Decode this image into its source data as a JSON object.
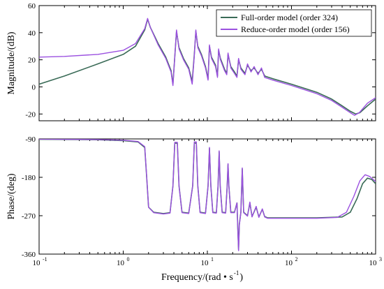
{
  "chart_data": [
    {
      "type": "line",
      "panel": "magnitude",
      "xscale": "log",
      "xlim": [
        0.1,
        1000
      ],
      "ylim": [
        -25,
        60
      ],
      "ylabel": "Magnitude/(dB)",
      "xlabel": "",
      "yticks": [
        "60",
        "40",
        "20",
        "0",
        "-20"
      ],
      "ytick_values": [
        60,
        40,
        20,
        0,
        -20
      ],
      "xtick_values": [
        0.1,
        1,
        10,
        100,
        1000
      ],
      "legend_position": "top-right",
      "grid": false,
      "series": [
        {
          "name": "Full-order model (order 324)",
          "color": "#3a6b57",
          "points": [
            [
              0.1,
              2
            ],
            [
              0.2,
              8
            ],
            [
              0.5,
              17
            ],
            [
              1.0,
              24
            ],
            [
              1.4,
              30
            ],
            [
              1.8,
              42
            ],
            [
              1.95,
              50
            ],
            [
              2.1,
              44
            ],
            [
              2.6,
              32
            ],
            [
              3.2,
              22
            ],
            [
              3.7,
              12
            ],
            [
              3.9,
              2
            ],
            [
              4.1,
              22
            ],
            [
              4.3,
              41
            ],
            [
              4.6,
              29
            ],
            [
              5.2,
              21
            ],
            [
              6.0,
              14
            ],
            [
              6.6,
              4
            ],
            [
              7.0,
              24
            ],
            [
              7.3,
              41
            ],
            [
              7.7,
              30
            ],
            [
              8.5,
              24
            ],
            [
              9.5,
              15
            ],
            [
              10.2,
              6
            ],
            [
              10.6,
              30
            ],
            [
              11.2,
              22
            ],
            [
              12.5,
              16
            ],
            [
              13.2,
              8
            ],
            [
              13.6,
              27
            ],
            [
              14.3,
              21
            ],
            [
              16.0,
              13
            ],
            [
              17.0,
              10
            ],
            [
              17.6,
              24
            ],
            [
              19.0,
              15
            ],
            [
              21.0,
              11
            ],
            [
              22.5,
              8
            ],
            [
              23.5,
              20
            ],
            [
              25.0,
              14
            ],
            [
              28.0,
              10
            ],
            [
              30.0,
              16
            ],
            [
              33.0,
              12
            ],
            [
              36.0,
              14
            ],
            [
              40.0,
              10
            ],
            [
              44.0,
              13
            ],
            [
              48.0,
              8
            ],
            [
              60.0,
              6
            ],
            [
              100.0,
              2
            ],
            [
              200.0,
              -4
            ],
            [
              300.0,
              -9
            ],
            [
              400.0,
              -14
            ],
            [
              500.0,
              -18
            ],
            [
              580.0,
              -20
            ],
            [
              650.0,
              -19
            ],
            [
              800.0,
              -14
            ],
            [
              1000.0,
              -9
            ]
          ]
        },
        {
          "name": "Reduce-order model (order 156)",
          "color": "#9b51e0",
          "points": [
            [
              0.1,
              22
            ],
            [
              0.2,
              22.5
            ],
            [
              0.5,
              24
            ],
            [
              1.0,
              27
            ],
            [
              1.4,
              32
            ],
            [
              1.8,
              43
            ],
            [
              1.95,
              50.5
            ],
            [
              2.1,
              44
            ],
            [
              2.6,
              31
            ],
            [
              3.2,
              21
            ],
            [
              3.7,
              11
            ],
            [
              3.9,
              1
            ],
            [
              4.1,
              22
            ],
            [
              4.3,
              42
            ],
            [
              4.6,
              28
            ],
            [
              5.2,
              20
            ],
            [
              6.0,
              13
            ],
            [
              6.6,
              2
            ],
            [
              7.0,
              23
            ],
            [
              7.3,
              42
            ],
            [
              7.7,
              29
            ],
            [
              8.5,
              23
            ],
            [
              9.5,
              14
            ],
            [
              10.2,
              5
            ],
            [
              10.6,
              31
            ],
            [
              11.2,
              21
            ],
            [
              12.5,
              15
            ],
            [
              13.2,
              7
            ],
            [
              13.6,
              28
            ],
            [
              14.3,
              20
            ],
            [
              16.0,
              12
            ],
            [
              17.0,
              9
            ],
            [
              17.6,
              25
            ],
            [
              19.0,
              14
            ],
            [
              21.0,
              10
            ],
            [
              22.5,
              7
            ],
            [
              23.5,
              21
            ],
            [
              25.0,
              13
            ],
            [
              28.0,
              9
            ],
            [
              30.0,
              17
            ],
            [
              33.0,
              11
            ],
            [
              36.0,
              15
            ],
            [
              40.0,
              9
            ],
            [
              44.0,
              14
            ],
            [
              48.0,
              7
            ],
            [
              60.0,
              5
            ],
            [
              100.0,
              1
            ],
            [
              200.0,
              -5
            ],
            [
              300.0,
              -10
            ],
            [
              400.0,
              -15
            ],
            [
              500.0,
              -19
            ],
            [
              560.0,
              -21
            ],
            [
              640.0,
              -19
            ],
            [
              800.0,
              -12
            ],
            [
              1000.0,
              -8
            ]
          ]
        }
      ]
    },
    {
      "type": "line",
      "panel": "phase",
      "xscale": "log",
      "xlim": [
        0.1,
        1000
      ],
      "ylim": [
        -360,
        -90
      ],
      "ylabel": "Phase/(deg)",
      "xlabel": "Frequency/(rad • s",
      "xlabel_superscript": "-1",
      "xlabel_close": ")",
      "yticks": [
        "-90",
        "-180",
        "-270",
        "-360"
      ],
      "ytick_values": [
        -90,
        -180,
        -270,
        -360
      ],
      "xtick_base": "10",
      "xtick_exponents": [
        "-1",
        "0",
        "1",
        "2",
        "3"
      ],
      "xtick_values": [
        0.1,
        1,
        10,
        100,
        1000
      ],
      "grid": false,
      "series": [
        {
          "name": "Full-order model (order 324)",
          "color": "#3a6b57",
          "points": [
            [
              0.1,
              -91
            ],
            [
              0.5,
              -92
            ],
            [
              1.0,
              -94
            ],
            [
              1.5,
              -97
            ],
            [
              1.8,
              -110
            ],
            [
              1.9,
              -180
            ],
            [
              2.0,
              -250
            ],
            [
              2.3,
              -262
            ],
            [
              3.0,
              -265
            ],
            [
              3.6,
              -263
            ],
            [
              3.9,
              -200
            ],
            [
              4.1,
              -100
            ],
            [
              4.4,
              -100
            ],
            [
              4.6,
              -200
            ],
            [
              5.0,
              -262
            ],
            [
              6.0,
              -264
            ],
            [
              6.7,
              -200
            ],
            [
              7.0,
              -100
            ],
            [
              7.4,
              -100
            ],
            [
              7.7,
              -200
            ],
            [
              8.2,
              -262
            ],
            [
              9.5,
              -264
            ],
            [
              10.2,
              -200
            ],
            [
              10.6,
              -112
            ],
            [
              11.0,
              -200
            ],
            [
              11.6,
              -262
            ],
            [
              12.8,
              -263
            ],
            [
              13.4,
              -200
            ],
            [
              13.8,
              -120
            ],
            [
              14.2,
              -200
            ],
            [
              15.0,
              -262
            ],
            [
              16.5,
              -263
            ],
            [
              17.2,
              -200
            ],
            [
              17.6,
              -150
            ],
            [
              18.0,
              -200
            ],
            [
              19.0,
              -262
            ],
            [
              21.0,
              -262
            ],
            [
              22.5,
              -240
            ],
            [
              23.0,
              -300
            ],
            [
              23.5,
              -350
            ],
            [
              24.0,
              -290
            ],
            [
              25.0,
              -262
            ],
            [
              26.0,
              -160
            ],
            [
              27.0,
              -262
            ],
            [
              30.0,
              -270
            ],
            [
              32.0,
              -240
            ],
            [
              34.0,
              -272
            ],
            [
              38.0,
              -250
            ],
            [
              41.0,
              -273
            ],
            [
              45.0,
              -255
            ],
            [
              48.0,
              -272
            ],
            [
              52.0,
              -275
            ],
            [
              80.0,
              -275
            ],
            [
              200.0,
              -275
            ],
            [
              400.0,
              -273
            ],
            [
              500.0,
              -262
            ],
            [
              600.0,
              -230
            ],
            [
              700.0,
              -195
            ],
            [
              800.0,
              -182
            ],
            [
              900.0,
              -185
            ],
            [
              1000.0,
              -195
            ]
          ]
        },
        {
          "name": "Reduce-order model (order 156)",
          "color": "#9b51e0",
          "points": [
            [
              0.1,
              -90.5
            ],
            [
              0.5,
              -91.5
            ],
            [
              1.0,
              -93
            ],
            [
              1.5,
              -96
            ],
            [
              1.8,
              -108
            ],
            [
              1.9,
              -178
            ],
            [
              2.0,
              -250
            ],
            [
              2.3,
              -263
            ],
            [
              3.0,
              -266
            ],
            [
              3.6,
              -264
            ],
            [
              3.9,
              -200
            ],
            [
              4.1,
              -98
            ],
            [
              4.4,
              -98
            ],
            [
              4.6,
              -200
            ],
            [
              5.0,
              -263
            ],
            [
              6.0,
              -265
            ],
            [
              6.7,
              -200
            ],
            [
              7.0,
              -97
            ],
            [
              7.4,
              -97
            ],
            [
              7.7,
              -200
            ],
            [
              8.2,
              -263
            ],
            [
              9.5,
              -265
            ],
            [
              10.2,
              -200
            ],
            [
              10.6,
              -110
            ],
            [
              11.0,
              -200
            ],
            [
              11.6,
              -263
            ],
            [
              12.8,
              -264
            ],
            [
              13.4,
              -200
            ],
            [
              13.8,
              -118
            ],
            [
              14.2,
              -200
            ],
            [
              15.0,
              -263
            ],
            [
              16.5,
              -264
            ],
            [
              17.2,
              -200
            ],
            [
              17.6,
              -148
            ],
            [
              18.0,
              -200
            ],
            [
              19.0,
              -263
            ],
            [
              21.0,
              -263
            ],
            [
              22.5,
              -240
            ],
            [
              23.0,
              -302
            ],
            [
              23.5,
              -352
            ],
            [
              24.0,
              -292
            ],
            [
              25.0,
              -263
            ],
            [
              26.0,
              -158
            ],
            [
              27.0,
              -263
            ],
            [
              30.0,
              -271
            ],
            [
              32.0,
              -238
            ],
            [
              34.0,
              -273
            ],
            [
              38.0,
              -248
            ],
            [
              41.0,
              -274
            ],
            [
              45.0,
              -254
            ],
            [
              48.0,
              -273
            ],
            [
              52.0,
              -276
            ],
            [
              80.0,
              -276
            ],
            [
              200.0,
              -276
            ],
            [
              350.0,
              -274
            ],
            [
              450.0,
              -262
            ],
            [
              550.0,
              -225
            ],
            [
              650.0,
              -188
            ],
            [
              750.0,
              -174
            ],
            [
              850.0,
              -178
            ],
            [
              1000.0,
              -190
            ]
          ]
        }
      ]
    }
  ]
}
